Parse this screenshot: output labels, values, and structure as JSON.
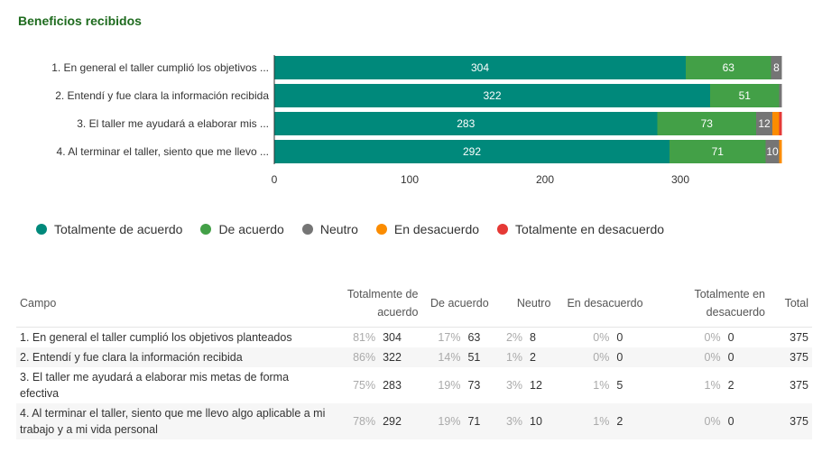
{
  "title": "Beneficios recibidos",
  "chart_data": {
    "type": "bar",
    "orientation": "horizontal",
    "stacked": true,
    "categories": [
      "1. En general el taller cumplió los objetivos ...",
      "2. Entendí y fue clara la información recibida",
      "3. El taller me ayudará a elaborar mis ...",
      "4. Al terminar el taller, siento que me llevo ..."
    ],
    "series": [
      {
        "name": "Totalmente de acuerdo",
        "color": "#00897b",
        "values": [
          304,
          322,
          283,
          292
        ]
      },
      {
        "name": "De acuerdo",
        "color": "#43a047",
        "values": [
          63,
          51,
          73,
          71
        ]
      },
      {
        "name": "Neutro",
        "color": "#757575",
        "values": [
          8,
          2,
          12,
          10
        ]
      },
      {
        "name": "En desacuerdo",
        "color": "#fb8c00",
        "values": [
          0,
          0,
          5,
          2
        ]
      },
      {
        "name": "Totalmente en desacuerdo",
        "color": "#e53935",
        "values": [
          0,
          0,
          2,
          0
        ]
      }
    ],
    "xticks": [
      0,
      100,
      200,
      300
    ],
    "xlim": [
      0,
      375
    ],
    "grid": false,
    "legend": "bottom"
  },
  "table": {
    "headers": [
      "Campo",
      "Totalmente de acuerdo",
      "De acuerdo",
      "Neutro",
      "En desacuerdo",
      "Totalmente en desacuerdo",
      "Total"
    ],
    "rows": [
      {
        "campo": "1. En general el taller cumplió los objetivos planteados",
        "cells": [
          [
            "81%",
            "304"
          ],
          [
            "17%",
            "63"
          ],
          [
            "2%",
            "8"
          ],
          [
            "0%",
            "0"
          ],
          [
            "0%",
            "0"
          ]
        ],
        "total": "375"
      },
      {
        "campo": "2. Entendí y fue clara la información recibida",
        "cells": [
          [
            "86%",
            "322"
          ],
          [
            "14%",
            "51"
          ],
          [
            "1%",
            "2"
          ],
          [
            "0%",
            "0"
          ],
          [
            "0%",
            "0"
          ]
        ],
        "total": "375"
      },
      {
        "campo": "3. El taller me ayudará a elaborar mis metas de forma efectiva",
        "cells": [
          [
            "75%",
            "283"
          ],
          [
            "19%",
            "73"
          ],
          [
            "3%",
            "12"
          ],
          [
            "1%",
            "5"
          ],
          [
            "1%",
            "2"
          ]
        ],
        "total": "375"
      },
      {
        "campo": "4. Al terminar el taller, siento que me llevo algo aplicable a mi trabajo y a mi vida personal",
        "cells": [
          [
            "78%",
            "292"
          ],
          [
            "19%",
            "71"
          ],
          [
            "3%",
            "10"
          ],
          [
            "1%",
            "2"
          ],
          [
            "0%",
            "0"
          ]
        ],
        "total": "375"
      }
    ]
  }
}
